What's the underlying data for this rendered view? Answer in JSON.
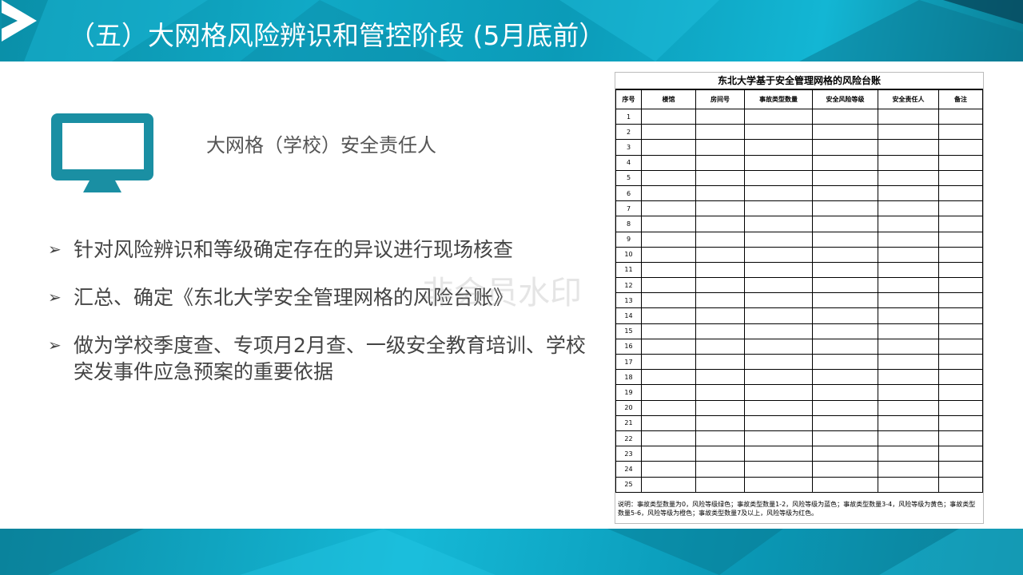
{
  "header": {
    "title": "（五）大网格风险辨识和管控阶段 (5月底前）",
    "logo_icon": "play-arrows-logo"
  },
  "colors": {
    "accent": "#1396ad",
    "monitor": "#1a8fa3"
  },
  "monitor_icon": "monitor-icon",
  "subtitle": "大网格（学校）安全责任人",
  "bullets": [
    "针对风险辨识和等级确定存在的异议进行现场核查",
    "汇总、确定《东北大学安全管理网格的风险台账》",
    "做为学校季度查、专项月2月查、一级安全教育培训、学校突发事件应急预案的重要依据"
  ],
  "watermark": "非会员水印",
  "ledger": {
    "title": "东北大学基于安全管理网格的风险台账",
    "columns": [
      "序号",
      "楼馆",
      "房间号",
      "事故类型数量",
      "安全风险等级",
      "安全责任人",
      "备注"
    ],
    "rows": [
      "1",
      "2",
      "3",
      "4",
      "5",
      "6",
      "7",
      "8",
      "9",
      "10",
      "11",
      "12",
      "13",
      "14",
      "15",
      "16",
      "17",
      "18",
      "19",
      "20",
      "21",
      "22",
      "23",
      "24",
      "25"
    ],
    "note": "说明：事故类型数量为0，风险等级绿色；事故类型数量1-2，风险等级为蓝色；事故类型数量3-4，风险等级为黄色；事故类型数量5-6，风险等级为橙色；事故类型数量7及以上，风险等级为红色。"
  }
}
